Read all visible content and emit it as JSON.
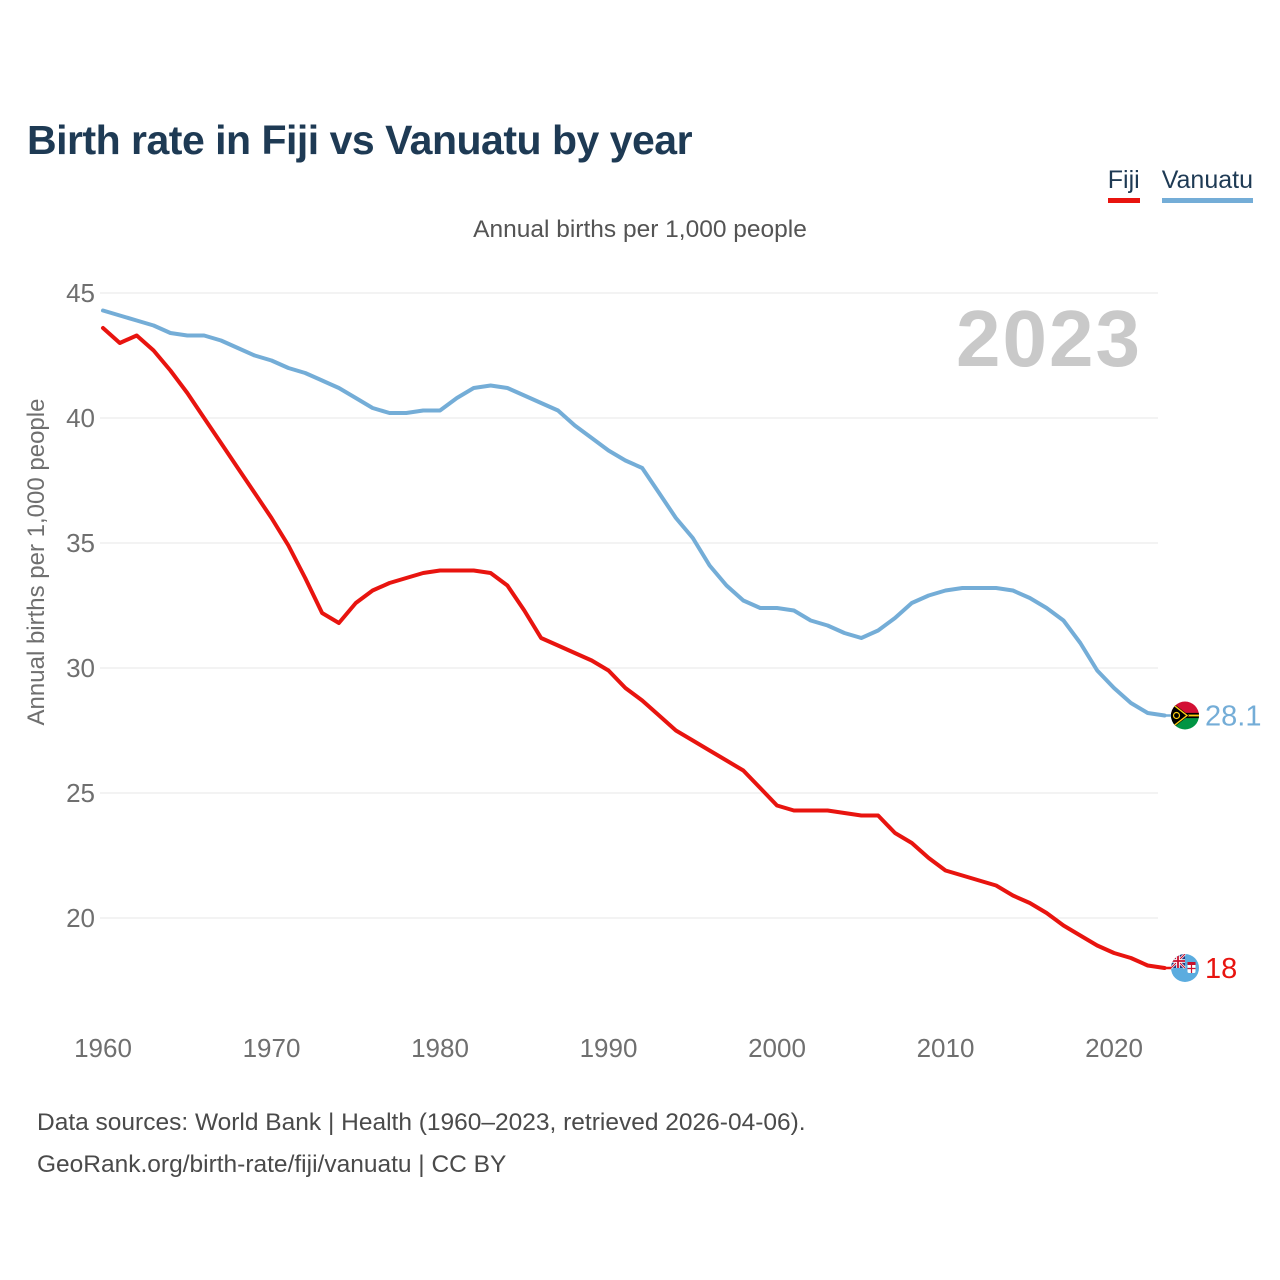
{
  "header": {
    "title": "Birth rate in Fiji vs Vanuatu by year",
    "subtitle": "Annual births per 1,000 people"
  },
  "watermark_year": "2023",
  "legend": [
    {
      "label": "Fiji",
      "color": "#e8140f"
    },
    {
      "label": "Vanuatu",
      "color": "#74add7"
    }
  ],
  "chart_data": {
    "type": "line",
    "title": "Birth rate in Fiji vs Vanuatu by year",
    "subtitle": "Annual births per 1,000 people",
    "ylabel": "Annual births per 1,000 people",
    "xlabel": "",
    "grid": true,
    "legend_position": "top-right",
    "ylim": [
      17.5,
      45.5
    ],
    "xlim": [
      1960,
      2023
    ],
    "y_ticks": [
      20,
      25,
      30,
      35,
      40,
      45
    ],
    "x_ticks": [
      1960,
      1970,
      1980,
      1990,
      2000,
      2010,
      2020
    ],
    "x": [
      1960,
      1961,
      1962,
      1963,
      1964,
      1965,
      1966,
      1967,
      1968,
      1969,
      1970,
      1971,
      1972,
      1973,
      1974,
      1975,
      1976,
      1977,
      1978,
      1979,
      1980,
      1981,
      1982,
      1983,
      1984,
      1985,
      1986,
      1987,
      1988,
      1989,
      1990,
      1991,
      1992,
      1993,
      1994,
      1995,
      1996,
      1997,
      1998,
      1999,
      2000,
      2001,
      2002,
      2003,
      2004,
      2005,
      2006,
      2007,
      2008,
      2009,
      2010,
      2011,
      2012,
      2013,
      2014,
      2015,
      2016,
      2017,
      2018,
      2019,
      2020,
      2021,
      2022,
      2023
    ],
    "series": [
      {
        "name": "Fiji",
        "color": "#e8140f",
        "end_label": "18",
        "end_value": 18,
        "flag": "fiji",
        "values": [
          43.6,
          43.0,
          43.3,
          42.7,
          41.9,
          41.0,
          40.0,
          39.0,
          38.0,
          37.0,
          36.0,
          34.9,
          33.6,
          32.2,
          31.8,
          32.6,
          33.1,
          33.4,
          33.6,
          33.8,
          33.9,
          33.9,
          33.9,
          33.8,
          33.3,
          32.3,
          31.2,
          30.9,
          30.6,
          30.3,
          29.9,
          29.2,
          28.7,
          28.1,
          27.5,
          27.1,
          26.7,
          26.3,
          25.9,
          25.2,
          24.5,
          24.3,
          24.3,
          24.3,
          24.2,
          24.1,
          24.1,
          23.4,
          23.0,
          22.4,
          21.9,
          21.7,
          21.5,
          21.3,
          20.9,
          20.6,
          20.2,
          19.7,
          19.3,
          18.9,
          18.6,
          18.4,
          18.1,
          18.0
        ]
      },
      {
        "name": "Vanuatu",
        "color": "#74add7",
        "end_label": "28.1",
        "end_value": 28.1,
        "flag": "vanuatu",
        "values": [
          44.3,
          44.1,
          43.9,
          43.7,
          43.4,
          43.3,
          43.3,
          43.1,
          42.8,
          42.5,
          42.3,
          42.0,
          41.8,
          41.5,
          41.2,
          40.8,
          40.4,
          40.2,
          40.2,
          40.3,
          40.3,
          40.8,
          41.2,
          41.3,
          41.2,
          40.9,
          40.6,
          40.3,
          39.7,
          39.2,
          38.7,
          38.3,
          38.0,
          37.0,
          36.0,
          35.2,
          34.1,
          33.3,
          32.7,
          32.4,
          32.4,
          32.3,
          31.9,
          31.7,
          31.4,
          31.2,
          31.5,
          32.0,
          32.6,
          32.9,
          33.1,
          33.2,
          33.2,
          33.2,
          33.1,
          32.8,
          32.4,
          31.9,
          31.0,
          29.9,
          29.2,
          28.6,
          28.2,
          28.1
        ]
      }
    ]
  },
  "footer": {
    "line1": "Data sources: World Bank | Health (1960–2023, retrieved 2026-04-06).",
    "line2": "GeoRank.org/birth-rate/fiji/vanuatu | CC BY"
  }
}
